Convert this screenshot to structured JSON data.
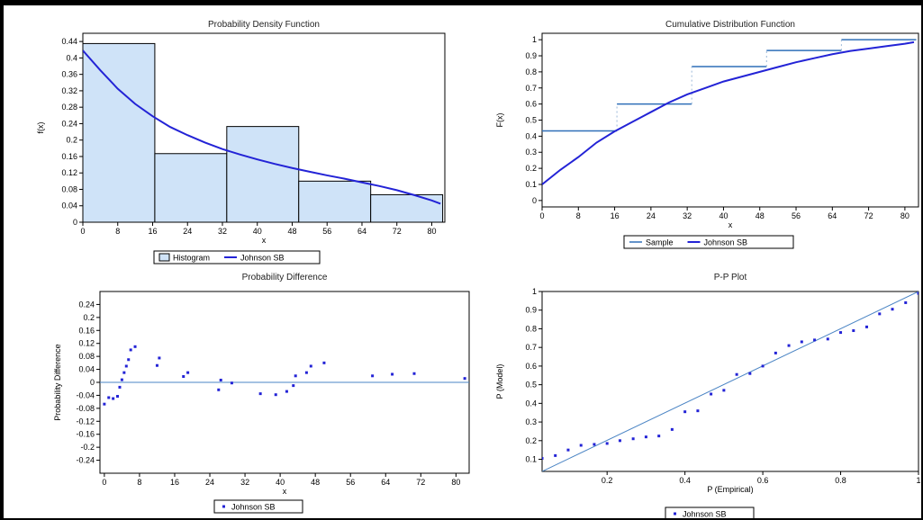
{
  "colors": {
    "curve": "#2323d6",
    "hist_fill": "#cfe3f8",
    "hist_stroke": "#000000",
    "sample_line": "#2f6fb8",
    "points": "#2323d6",
    "ref_line": "#4a84c4"
  },
  "chart_data": [
    {
      "id": "pdf",
      "type": "bar",
      "title": "Probability Density Function",
      "xlabel": "x",
      "ylabel": "f(x)",
      "xlim": [
        0,
        83
      ],
      "ylim": [
        0,
        0.46
      ],
      "xticks": [
        0,
        8,
        16,
        24,
        32,
        40,
        48,
        56,
        64,
        72,
        80
      ],
      "yticks": [
        0,
        0.04,
        0.08,
        0.12,
        0.16,
        0.2,
        0.24,
        0.28,
        0.32,
        0.36,
        0.4,
        0.44
      ],
      "series": [
        {
          "name": "Histogram",
          "type": "histogram",
          "bins": [
            [
              0,
              16.5
            ],
            [
              16.5,
              33
            ],
            [
              33,
              49.5
            ],
            [
              49.5,
              66
            ],
            [
              66,
              82.5
            ]
          ],
          "values": [
            0.435,
            0.167,
            0.233,
            0.1,
            0.067
          ]
        },
        {
          "name": "Johnson SB",
          "type": "line",
          "x": [
            0,
            4,
            8,
            12,
            16,
            20,
            24,
            28,
            32,
            36,
            40,
            44,
            48,
            52,
            56,
            60,
            64,
            68,
            72,
            76,
            80,
            82
          ],
          "y": [
            0.418,
            0.37,
            0.325,
            0.288,
            0.258,
            0.232,
            0.212,
            0.194,
            0.178,
            0.165,
            0.153,
            0.142,
            0.132,
            0.123,
            0.114,
            0.106,
            0.097,
            0.088,
            0.078,
            0.066,
            0.053,
            0.045
          ]
        }
      ],
      "legend": [
        "Histogram",
        "Johnson SB"
      ],
      "legend_position": "bottom"
    },
    {
      "id": "cdf",
      "type": "line",
      "title": "Cumulative Distribution Function",
      "xlabel": "x",
      "ylabel": "F(x)",
      "xlim": [
        0,
        83
      ],
      "ylim": [
        -0.04,
        1.04
      ],
      "xticks": [
        0,
        8,
        16,
        24,
        32,
        40,
        48,
        56,
        64,
        72,
        80
      ],
      "yticks": [
        0,
        0.1,
        0.2,
        0.3,
        0.4,
        0.5,
        0.6,
        0.7,
        0.8,
        0.9,
        1
      ],
      "series": [
        {
          "name": "Sample",
          "type": "step",
          "steps": [
            [
              0,
              16.5,
              0.433
            ],
            [
              16.5,
              33,
              0.6
            ],
            [
              33,
              49.5,
              0.833
            ],
            [
              49.5,
              66,
              0.933
            ],
            [
              66,
              82.5,
              1.0
            ]
          ]
        },
        {
          "name": "Johnson SB",
          "type": "line",
          "x": [
            0,
            4,
            8,
            12,
            16,
            20,
            24,
            28,
            32,
            36,
            40,
            44,
            48,
            52,
            56,
            60,
            64,
            68,
            72,
            76,
            80,
            82
          ],
          "y": [
            0.1,
            0.19,
            0.27,
            0.36,
            0.43,
            0.49,
            0.55,
            0.61,
            0.66,
            0.7,
            0.74,
            0.77,
            0.8,
            0.83,
            0.86,
            0.885,
            0.91,
            0.93,
            0.945,
            0.96,
            0.975,
            0.985
          ]
        }
      ],
      "legend": [
        "Sample",
        "Johnson SB"
      ],
      "legend_position": "bottom"
    },
    {
      "id": "probdiff",
      "type": "scatter",
      "title": "Probability Difference",
      "xlabel": "x",
      "ylabel": "Probability Difference",
      "xlim": [
        -1,
        83
      ],
      "ylim": [
        -0.28,
        0.28
      ],
      "xticks": [
        0,
        8,
        16,
        24,
        32,
        40,
        48,
        56,
        64,
        72,
        80
      ],
      "yticks": [
        -0.24,
        -0.2,
        -0.16,
        -0.12,
        -0.08,
        -0.04,
        0,
        0.04,
        0.08,
        0.12,
        0.16,
        0.2,
        0.24
      ],
      "reference_y": 0,
      "series": [
        {
          "name": "Johnson SB",
          "x": [
            0,
            1,
            2,
            3,
            3.5,
            4,
            4.5,
            5,
            5.5,
            6,
            7,
            12,
            12.5,
            18,
            19,
            26,
            26.5,
            29,
            35.5,
            39,
            41.5,
            43,
            43.5,
            46,
            47,
            50,
            61,
            65.5,
            70.5,
            82
          ],
          "y": [
            -0.067,
            -0.047,
            -0.05,
            -0.043,
            -0.015,
            0.008,
            0.03,
            0.05,
            0.07,
            0.1,
            0.11,
            0.052,
            0.075,
            0.018,
            0.03,
            -0.023,
            0.007,
            -0.002,
            -0.035,
            -0.038,
            -0.028,
            -0.01,
            0.02,
            0.03,
            0.05,
            0.06,
            0.02,
            0.025,
            0.027,
            0.012
          ]
        }
      ],
      "legend": [
        "Johnson SB"
      ],
      "legend_position": "bottom"
    },
    {
      "id": "pp",
      "type": "scatter",
      "title": "P-P Plot",
      "xlabel": "P (Empirical)",
      "ylabel": "P (Model)",
      "xlim": [
        0.033,
        1.0
      ],
      "ylim": [
        0.035,
        1.0
      ],
      "xticks": [
        0.2,
        0.4,
        0.6,
        0.8,
        1
      ],
      "yticks": [
        0.1,
        0.2,
        0.3,
        0.4,
        0.5,
        0.6,
        0.7,
        0.8,
        0.9,
        1
      ],
      "reference_line": [
        [
          0.033,
          0.035
        ],
        [
          1.0,
          1.0
        ]
      ],
      "series": [
        {
          "name": "Johnson SB",
          "x": [
            0.033,
            0.067,
            0.1,
            0.133,
            0.167,
            0.2,
            0.233,
            0.267,
            0.3,
            0.333,
            0.367,
            0.4,
            0.433,
            0.467,
            0.5,
            0.533,
            0.567,
            0.6,
            0.633,
            0.667,
            0.7,
            0.733,
            0.767,
            0.8,
            0.833,
            0.867,
            0.9,
            0.933,
            0.967,
            1.0
          ],
          "y": [
            0.105,
            0.12,
            0.15,
            0.175,
            0.18,
            0.185,
            0.2,
            0.21,
            0.22,
            0.225,
            0.26,
            0.355,
            0.36,
            0.45,
            0.47,
            0.555,
            0.56,
            0.6,
            0.67,
            0.71,
            0.73,
            0.74,
            0.745,
            0.78,
            0.79,
            0.81,
            0.88,
            0.905,
            0.94,
            0.99
          ]
        }
      ],
      "legend": [
        "Johnson SB"
      ],
      "legend_position": "bottom"
    }
  ]
}
